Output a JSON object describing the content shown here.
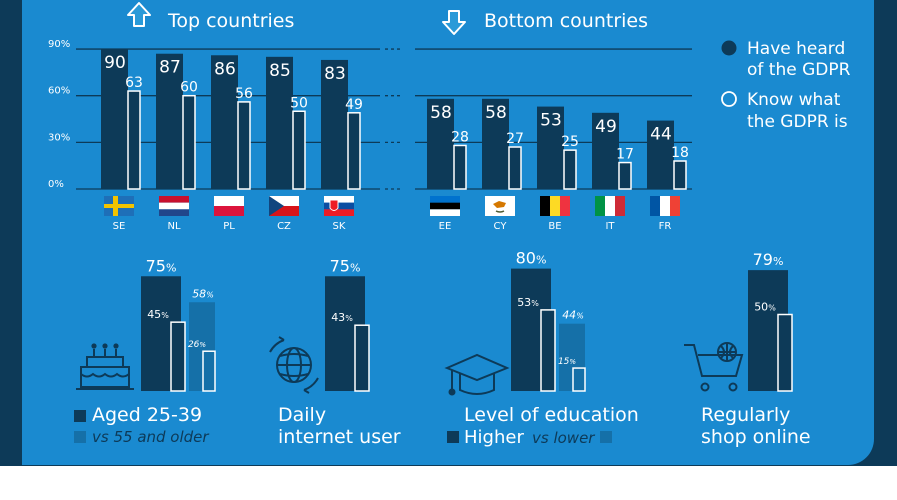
{
  "charts": {
    "top": {
      "title": "Top countries",
      "yticks": [
        "90%",
        "60%",
        "30%",
        "0%"
      ]
    },
    "bottom": {
      "title": "Bottom countries"
    },
    "legend": {
      "heard": "Have heard of the GDPR",
      "heard_line1": "Have heard",
      "heard_line2": "of the GDPR",
      "know": "Know what the GDPR is",
      "know_line1": "Know what",
      "know_line2": "the GDPR is"
    }
  },
  "chart_data": [
    {
      "type": "bar",
      "title": "Top countries",
      "categories": [
        "SE",
        "NL",
        "PL",
        "CZ",
        "SK"
      ],
      "ylim": [
        0,
        90
      ],
      "series": [
        {
          "name": "Have heard of the GDPR",
          "values": [
            90,
            87,
            86,
            85,
            83
          ]
        },
        {
          "name": "Know what the GDPR is",
          "values": [
            63,
            60,
            56,
            50,
            49
          ]
        }
      ]
    },
    {
      "type": "bar",
      "title": "Bottom countries",
      "categories": [
        "EE",
        "CY",
        "BE",
        "IT",
        "FR"
      ],
      "ylim": [
        0,
        90
      ],
      "series": [
        {
          "name": "Have heard of the GDPR",
          "values": [
            58,
            58,
            53,
            49,
            44
          ]
        },
        {
          "name": "Know what the GDPR is",
          "values": [
            28,
            27,
            25,
            17,
            18
          ]
        }
      ]
    },
    {
      "type": "bar",
      "groups": [
        {
          "label_line1": "Aged 25-39",
          "label_line2": "vs 55 and older",
          "primary": {
            "heard": 75,
            "know": 45
          },
          "comparison": {
            "heard": 58,
            "know": 26
          }
        },
        {
          "label_line1": "Daily",
          "label_line2": "internet user",
          "primary": {
            "heard": 75,
            "know": 43
          }
        },
        {
          "label_line1": "Level of education",
          "label_line2_a": "Higher",
          "label_line2_b": "vs lower",
          "primary": {
            "heard": 80,
            "know": 53
          },
          "comparison": {
            "heard": 44,
            "know": 15
          }
        },
        {
          "label_line1": "Regularly",
          "label_line2": "shop online",
          "primary": {
            "heard": 79,
            "know": 50
          }
        }
      ]
    }
  ],
  "colors": {
    "panel": "#1a8ad0",
    "dark": "#0d3a58",
    "comparison": "#1570a8",
    "white": "#ffffff"
  },
  "icons": {
    "top": "arrow-up-icon",
    "bottom": "arrow-down-icon",
    "age": "birthday-cake-icon",
    "internet": "globe-icon",
    "education": "graduation-cap-icon",
    "shop": "shopping-cart-icon"
  }
}
